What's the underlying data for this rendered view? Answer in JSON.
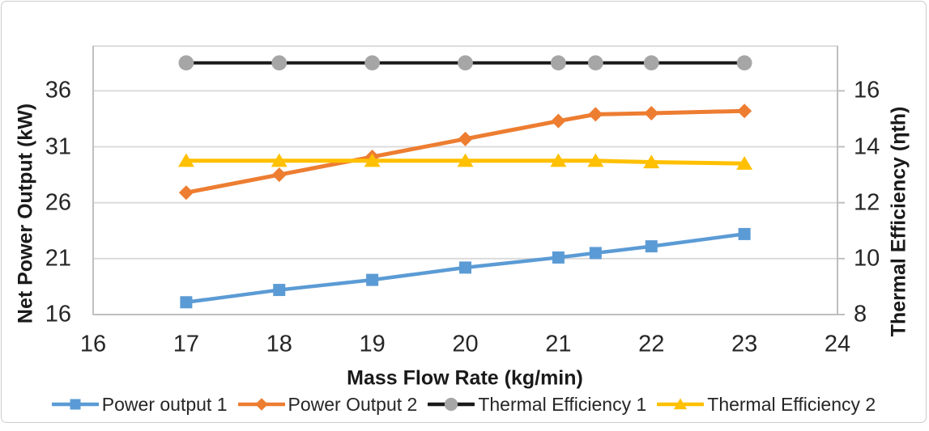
{
  "figure": {
    "background": "#FFFFFF",
    "border_color": "#CCCCCC"
  },
  "chart_data": {
    "type": "line",
    "title": "",
    "xlabel": "Mass Flow Rate (kg/min)",
    "ylabel_left": "Net Power Output (kW)",
    "ylabel_right": "Thermal Efficiency (ηth)",
    "grid": true,
    "legend_position": "bottom",
    "x_range": [
      16,
      24
    ],
    "y_left_range": [
      16,
      40
    ],
    "y_right_range": [
      8,
      17.6
    ],
    "x_ticks": [
      16,
      17,
      18,
      19,
      20,
      21,
      22,
      23,
      24
    ],
    "y_left_ticks": [
      36,
      31,
      26,
      21,
      16
    ],
    "y_right_ticks": [
      16,
      14,
      12,
      10,
      8
    ],
    "x": [
      17,
      18,
      19,
      20,
      21,
      21.4,
      22,
      23
    ],
    "series": [
      {
        "name": "Power output 1",
        "axis": "left",
        "color": "#5B9BD5",
        "marker": "square",
        "values": [
          17.1,
          18.2,
          19.1,
          20.2,
          21.1,
          21.5,
          22.1,
          23.2
        ]
      },
      {
        "name": "Power Output 2",
        "axis": "left",
        "color": "#ED7D31",
        "marker": "diamond",
        "values": [
          26.9,
          28.5,
          30.1,
          31.7,
          33.3,
          33.9,
          34.0,
          34.2
        ]
      },
      {
        "name": "Thermal Efficiency 1",
        "axis": "right",
        "color": "#1A1A1A",
        "marker_color": "#A6A6A6",
        "marker": "circle",
        "values": [
          17,
          17,
          17,
          17,
          17,
          17,
          17,
          17
        ]
      },
      {
        "name": "Thermal Efficiency 2",
        "axis": "right",
        "color": "#FFC000",
        "marker": "triangle",
        "values": [
          13.5,
          13.5,
          13.5,
          13.5,
          13.5,
          13.5,
          13.45,
          13.4
        ]
      }
    ]
  }
}
